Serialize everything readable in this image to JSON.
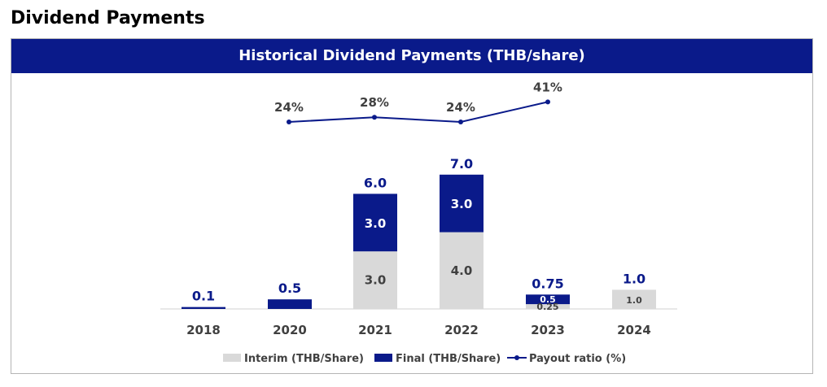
{
  "page": {
    "title": "Dividend Payments"
  },
  "chart_data": {
    "type": "bar",
    "title": "Historical Dividend Payments (THB/share)",
    "categories": [
      "2018",
      "2020",
      "2021",
      "2022",
      "2023",
      "2024"
    ],
    "totals": [
      "0.1",
      "0.5",
      "6.0",
      "7.0",
      "0.75",
      "1.0"
    ],
    "series": [
      {
        "name": "Interim (THB/Share)",
        "kind": "bar",
        "color": "#d9d9d9",
        "values": [
          0,
          0,
          3.0,
          4.0,
          0.25,
          1.0
        ],
        "labels": [
          "",
          "",
          "3.0",
          "4.0",
          "0.25",
          "1.0"
        ]
      },
      {
        "name": "Final (THB/Share)",
        "kind": "bar",
        "color": "#0a1a8a",
        "values": [
          0.1,
          0.5,
          3.0,
          3.0,
          0.5,
          0
        ],
        "labels": [
          "",
          "",
          "3.0",
          "3.0",
          "0.5",
          ""
        ]
      },
      {
        "name": "Payout ratio (%)",
        "kind": "line",
        "color": "#0a1a8a",
        "values": [
          null,
          24,
          28,
          24,
          41,
          null
        ],
        "labels": [
          "",
          "24%",
          "28%",
          "24%",
          "41%",
          ""
        ]
      }
    ],
    "ylim": [
      0,
      7.5
    ],
    "grid": false,
    "legend": "bottom"
  }
}
